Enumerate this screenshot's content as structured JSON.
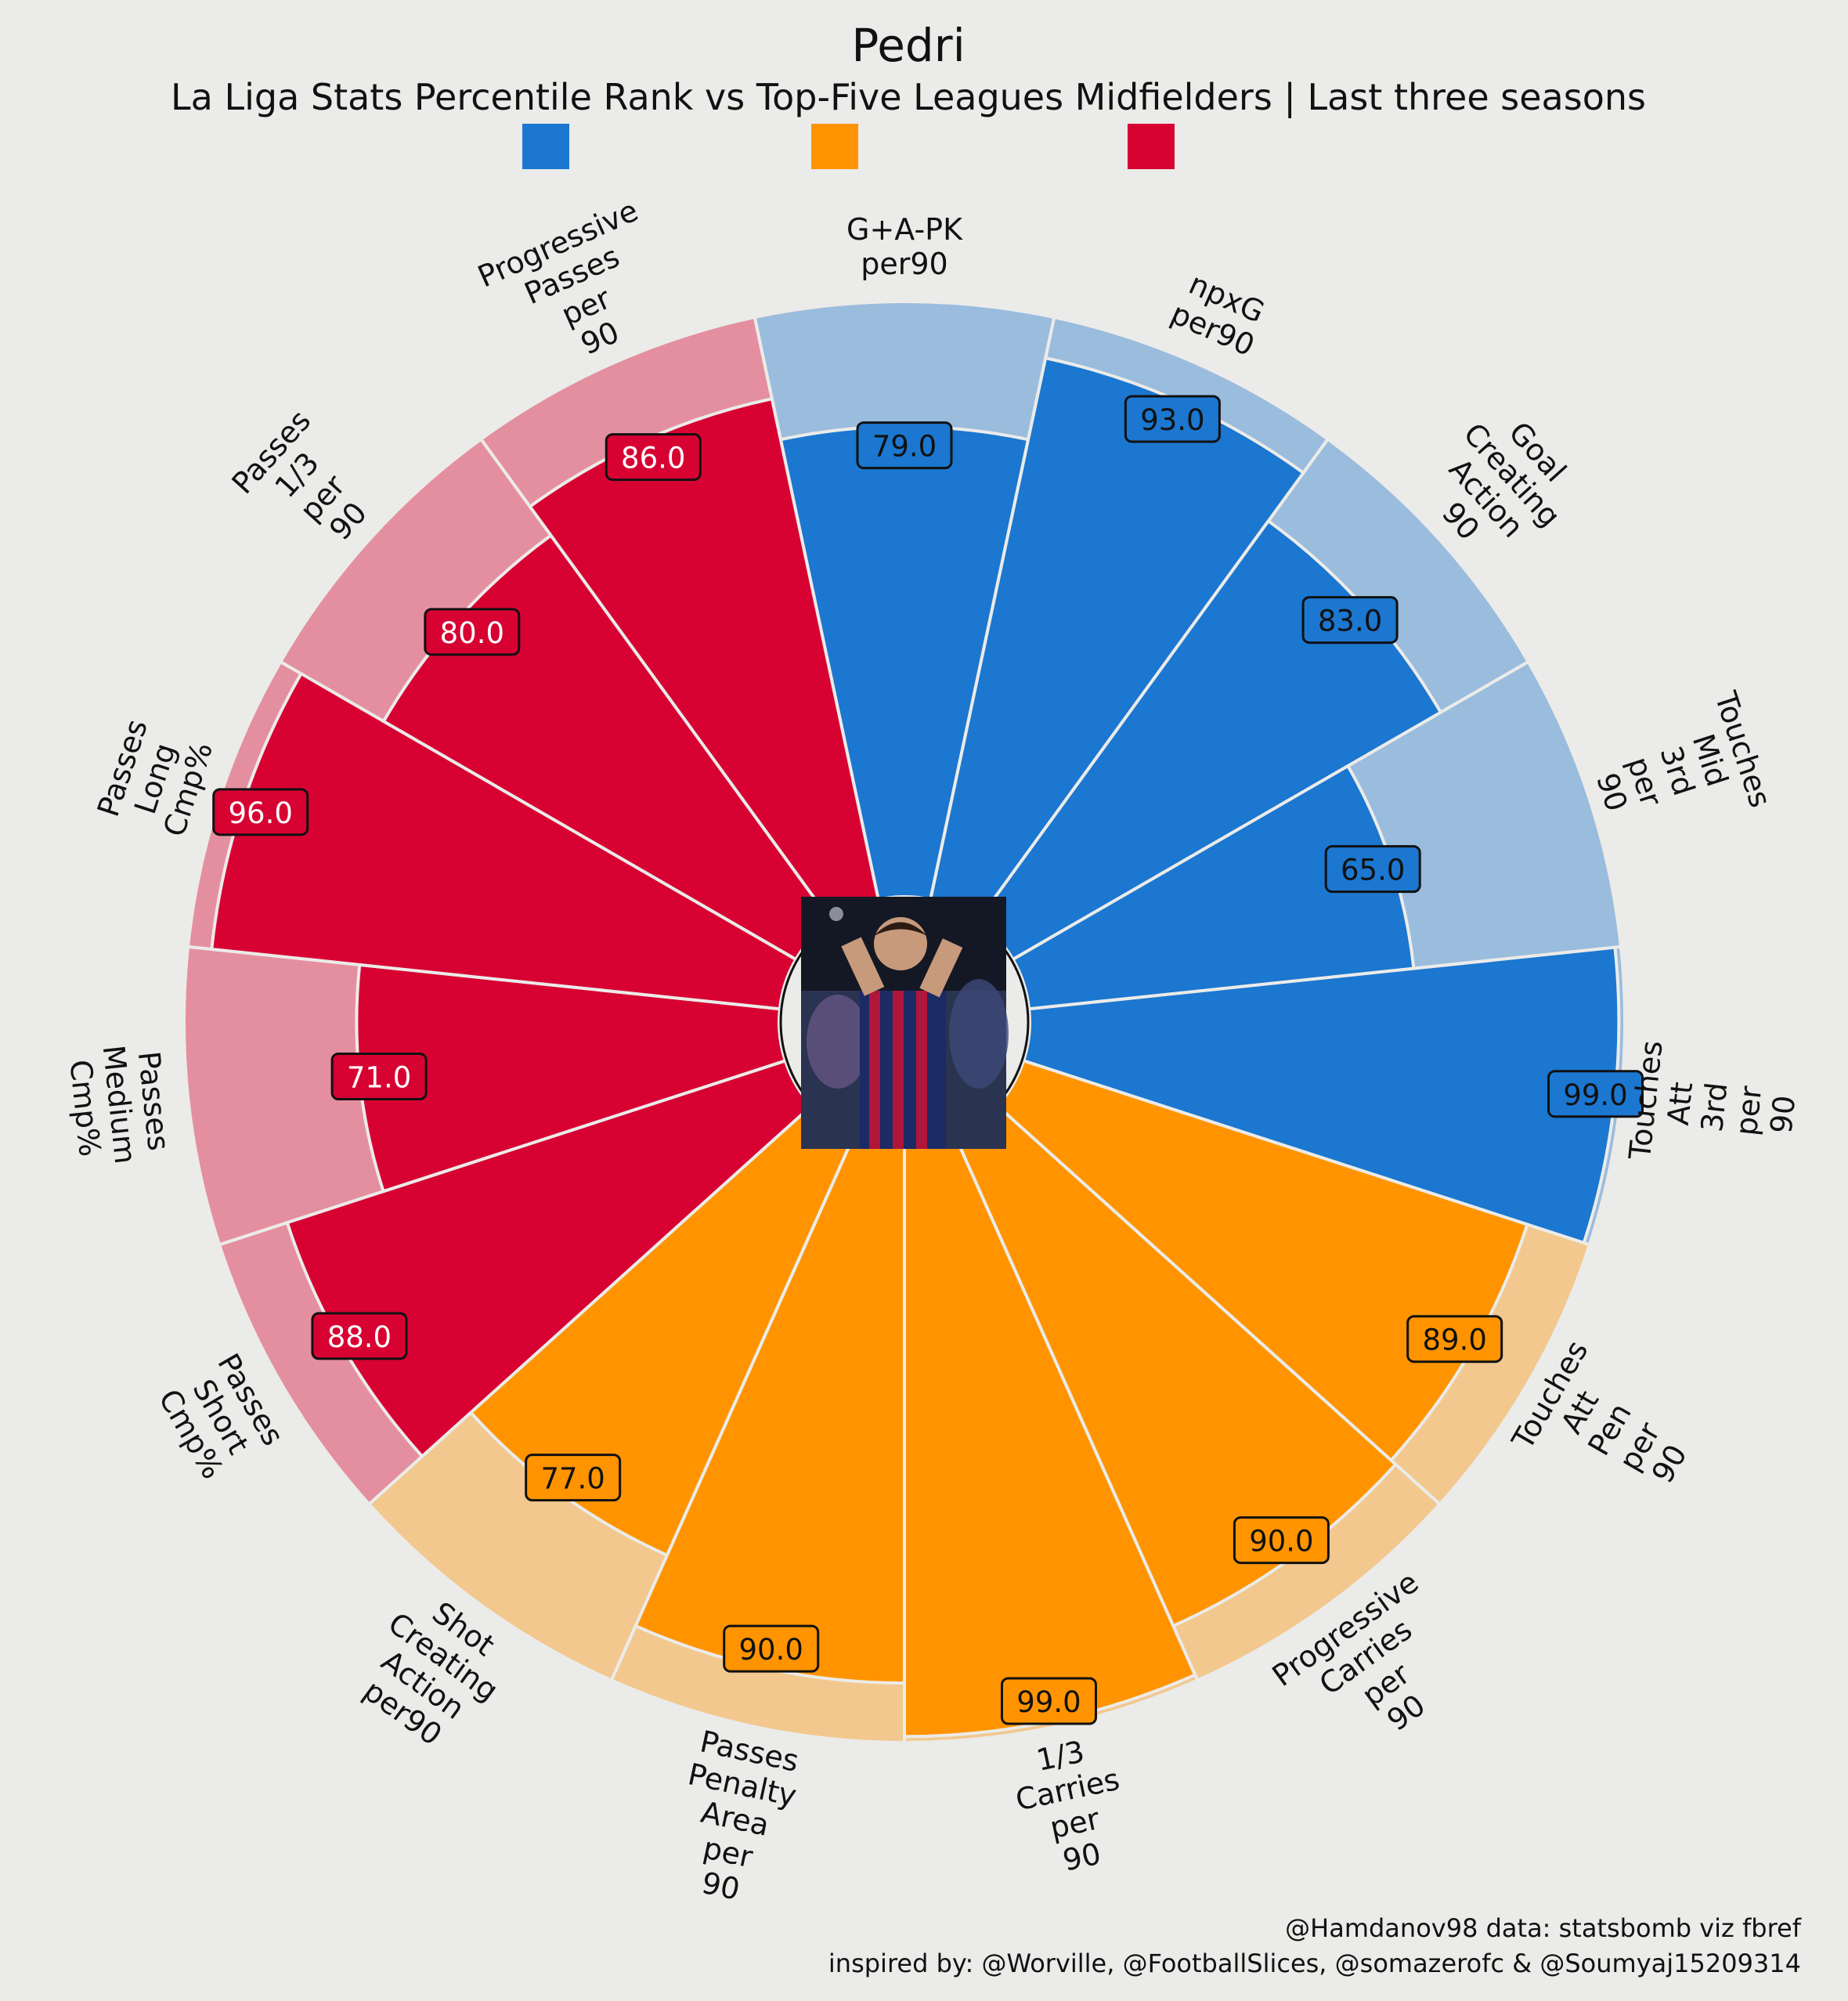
{
  "chart_data": {
    "type": "polar-bar",
    "title": "Pedri",
    "subtitle": "La Liga Stats Percentile Rank vs Top-Five Leagues Midfielders | Last three seasons",
    "rmax": 100,
    "legend": [
      {
        "color": "#1b77d0"
      },
      {
        "color": "#ff9400"
      },
      {
        "color": "#d70232"
      }
    ],
    "colors": {
      "attacking": "#1b77d0",
      "attacking_bg": "#9abcdd",
      "possession": "#ff9400",
      "possession_bg": "#f2c88e",
      "passing": "#d70232",
      "passing_bg": "#e48f9f"
    },
    "categories": [
      {
        "label": "G+A-PK per90",
        "value": 79.0,
        "group": "attacking"
      },
      {
        "label": "npxG per90",
        "value": 93.0,
        "group": "attacking"
      },
      {
        "label": "Goal Creating Action 90",
        "value": 83.0,
        "group": "attacking"
      },
      {
        "label": "Touches Mid 3rd per 90",
        "value": 65.0,
        "group": "attacking"
      },
      {
        "label": "Touches Att 3rd per 90",
        "value": 99.0,
        "group": "attacking"
      },
      {
        "label": "Touches Att Pen per 90",
        "value": 89.0,
        "group": "possession"
      },
      {
        "label": "Progressive Carries per 90",
        "value": 90.0,
        "group": "possession"
      },
      {
        "label": "1/3 Carries per 90",
        "value": 99.0,
        "group": "possession"
      },
      {
        "label": "Passes Penalty Area per 90",
        "value": 90.0,
        "group": "possession"
      },
      {
        "label": "Shot Creating Action per90",
        "value": 77.0,
        "group": "possession"
      },
      {
        "label": "Passes Short Cmp%",
        "value": 88.0,
        "group": "passing"
      },
      {
        "label": "Passes Medium Cmp%",
        "value": 71.0,
        "group": "passing"
      },
      {
        "label": "Passes Long Cmp%",
        "value": 96.0,
        "group": "passing"
      },
      {
        "label": "Passes 1/3 per 90",
        "value": 80.0,
        "group": "passing"
      },
      {
        "label": "Progressive Passes per 90",
        "value": 86.0,
        "group": "passing"
      }
    ],
    "value_labels": [
      "79.0",
      "93.0",
      "83.0",
      "65.0",
      "99.0",
      "89.0",
      "90.0",
      "99.0",
      "90.0",
      "77.0",
      "88.0",
      "71.0",
      "96.0",
      "80.0",
      "86.0"
    ],
    "axis_labels": [
      [
        "G+A-PK",
        "per90"
      ],
      [
        "npxG",
        "per90"
      ],
      [
        "Goal",
        "Creating",
        "Action",
        "90"
      ],
      [
        "Touches",
        "Mid",
        "3rd",
        "per",
        "90"
      ],
      [
        "Touches",
        "Att",
        "3rd",
        "per",
        "90"
      ],
      [
        "Touches",
        "Att",
        "Pen",
        "per",
        "90"
      ],
      [
        "Progressive",
        "Carries",
        "per",
        "90"
      ],
      [
        "1/3",
        "Carries",
        "per",
        "90"
      ],
      [
        "Passes",
        "Penalty",
        "Area",
        "per",
        "90"
      ],
      [
        "Shot",
        "Creating",
        "Action",
        "per90"
      ],
      [
        "Passes",
        "Short",
        "Cmp%"
      ],
      [
        "Passes",
        "Medium",
        "Cmp%"
      ],
      [
        "Passes",
        "Long",
        "Cmp%"
      ],
      [
        "Passes",
        "1/3",
        "per",
        "90"
      ],
      [
        "Progressive",
        "Passes",
        "per",
        "90"
      ]
    ]
  },
  "credits": {
    "line1": "@Hamdanov98 data: statsbomb viz fbref",
    "line2": "inspired by: @Worville, @FootballSlices, @somazerofc & @Soumyaj15209314"
  }
}
